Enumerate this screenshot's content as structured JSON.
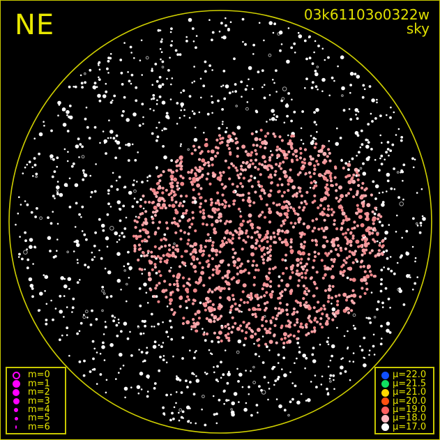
{
  "header": {
    "direction": "NE",
    "frame_id": "03k61103o0322w",
    "plot_type": "sky"
  },
  "colors": {
    "frame": "#c8c800",
    "text": "#e8e800",
    "magnitude_symbol": "#ff00ff"
  },
  "magnitude_legend": [
    {
      "label": "m=0",
      "style": "ring"
    },
    {
      "label": "m=1"
    },
    {
      "label": "m=2"
    },
    {
      "label": "m=3"
    },
    {
      "label": "m=4"
    },
    {
      "label": "m=5"
    },
    {
      "label": "m=6"
    }
  ],
  "surface_brightness_legend": [
    {
      "label": "μ=22.0",
      "color": "#1050ff"
    },
    {
      "label": "μ=21.5",
      "color": "#10e060"
    },
    {
      "label": "μ=21.0",
      "color": "#ffd800"
    },
    {
      "label": "μ=20.0",
      "color": "#ff5010"
    },
    {
      "label": "μ=19.0",
      "color": "#ff6060"
    },
    {
      "label": "μ=18.0",
      "color": "#ffb8c0"
    },
    {
      "label": "μ=17.0",
      "color": "#ffffff"
    }
  ]
}
